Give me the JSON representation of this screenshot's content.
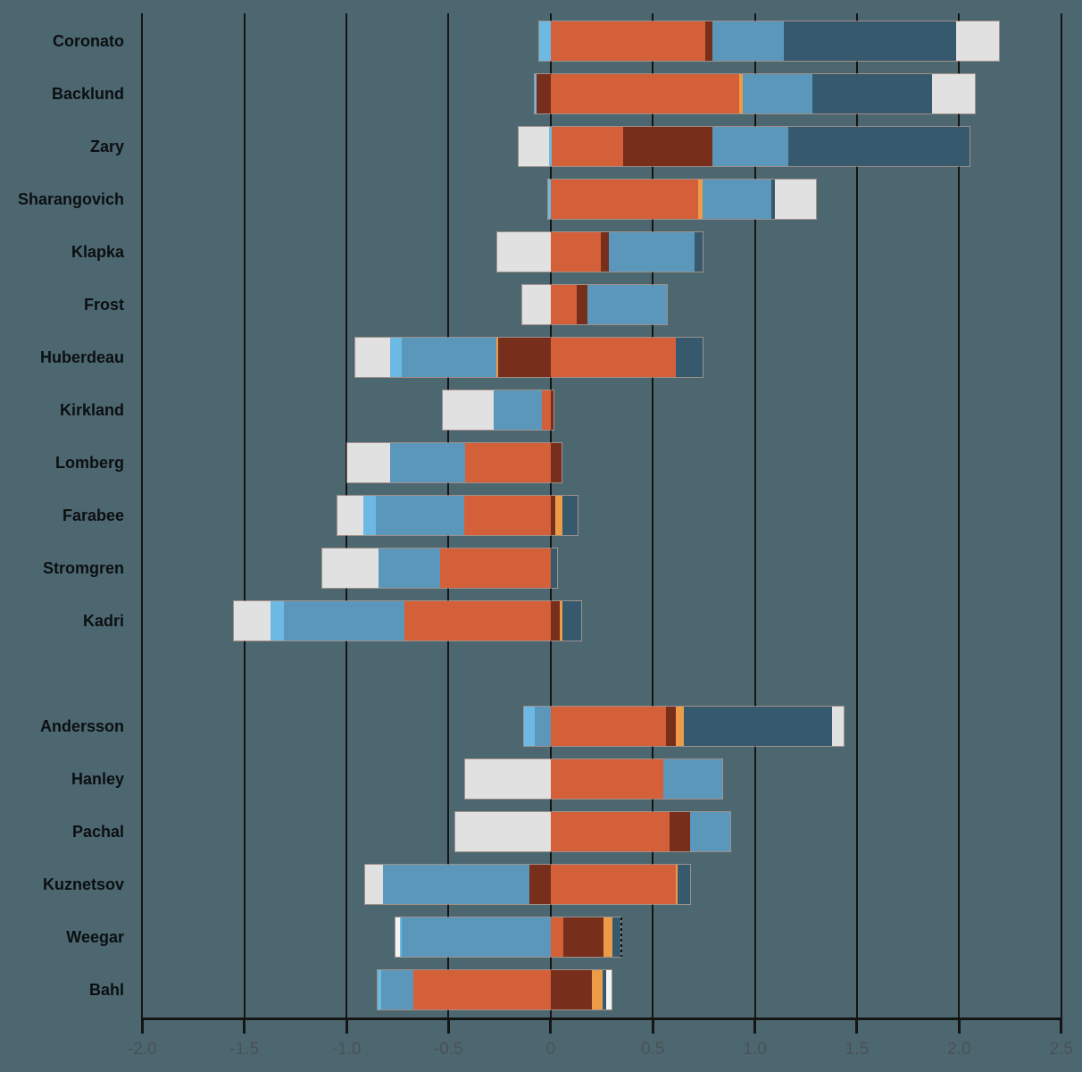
{
  "page": {
    "background_color": "#4D6770"
  },
  "chart_data": {
    "type": "bar",
    "variant": "horizontal-diverging-stacked",
    "title": "",
    "xlabel": "",
    "ylabel": "",
    "grid": "vertical-on",
    "legend": "none",
    "x_axis": {
      "min": -2.0,
      "max": 2.5,
      "tick_step": 0.5,
      "ticks": [
        -2.0,
        -1.5,
        -1.0,
        -0.5,
        0,
        0.5,
        1.0,
        1.5,
        2.0,
        2.5
      ],
      "tick_labels": [
        "-2.0",
        "-1.5",
        "-1.0",
        "-0.5",
        "0",
        "0.5",
        "1.0",
        "1.5",
        "2.0",
        "2.5"
      ]
    },
    "palette": {
      "light_blue": "#6CBAE4",
      "medium_blue": "#5B97BA",
      "dark_blue": "#37596E",
      "orange": "#D4603A",
      "dark_red": "#772F1C",
      "bright_orange": "#EC9C47",
      "light_gray": "#E2E1E1",
      "white": "#F4F4F4"
    },
    "groups": [
      {
        "rows": [
          {
            "label": "Coronato",
            "segments": [
              {
                "color": "light_blue",
                "from": -0.058,
                "to": 0
              },
              {
                "color": "orange",
                "from": 0,
                "to": 0.755
              },
              {
                "color": "dark_red",
                "from": 0.755,
                "to": 0.791
              },
              {
                "color": "medium_blue",
                "from": 0.791,
                "to": 1.14
              },
              {
                "color": "dark_blue",
                "from": 1.14,
                "to": 1.985
              },
              {
                "color": "light_gray",
                "from": 1.985,
                "to": 2.194
              }
            ]
          },
          {
            "label": "Backlund",
            "segments": [
              {
                "color": "light_blue",
                "from": -0.079,
                "to": -0.067
              },
              {
                "color": "dark_red",
                "from": -0.067,
                "to": 0
              },
              {
                "color": "orange",
                "from": 0,
                "to": 0.922
              },
              {
                "color": "bright_orange",
                "from": 0.922,
                "to": 0.942
              },
              {
                "color": "medium_blue",
                "from": 0.942,
                "to": 1.282
              },
              {
                "color": "dark_blue",
                "from": 1.282,
                "to": 1.868
              },
              {
                "color": "light_gray",
                "from": 1.868,
                "to": 2.077
              }
            ]
          },
          {
            "label": "Zary",
            "segments": [
              {
                "color": "light_gray",
                "from": -0.157,
                "to": -0.01
              },
              {
                "color": "light_blue",
                "from": -0.01,
                "to": 0.005
              },
              {
                "color": "orange",
                "from": 0.005,
                "to": 0.353
              },
              {
                "color": "dark_red",
                "from": 0.353,
                "to": 0.791
              },
              {
                "color": "medium_blue",
                "from": 0.791,
                "to": 1.165
              },
              {
                "color": "dark_blue",
                "from": 1.165,
                "to": 2.051
              }
            ]
          },
          {
            "label": "Sharangovich",
            "segments": [
              {
                "color": "light_blue",
                "from": -0.012,
                "to": 0
              },
              {
                "color": "orange",
                "from": 0,
                "to": 0.72
              },
              {
                "color": "bright_orange",
                "from": 0.72,
                "to": 0.742
              },
              {
                "color": "medium_blue",
                "from": 0.742,
                "to": 1.081
              },
              {
                "color": "dark_blue",
                "from": 1.081,
                "to": 1.099
              },
              {
                "color": "light_gray",
                "from": 1.099,
                "to": 1.3
              }
            ]
          },
          {
            "label": "Klapka",
            "segments": [
              {
                "color": "light_gray",
                "from": -0.26,
                "to": 0
              },
              {
                "color": "orange",
                "from": 0,
                "to": 0.247
              },
              {
                "color": "dark_red",
                "from": 0.247,
                "to": 0.284
              },
              {
                "color": "medium_blue",
                "from": 0.284,
                "to": 0.705
              },
              {
                "color": "dark_blue",
                "from": 0.705,
                "to": 0.744
              }
            ]
          },
          {
            "label": "Frost",
            "segments": [
              {
                "color": "light_gray",
                "from": -0.139,
                "to": 0
              },
              {
                "color": "orange",
                "from": 0,
                "to": 0.128
              },
              {
                "color": "dark_red",
                "from": 0.128,
                "to": 0.182
              },
              {
                "color": "medium_blue",
                "from": 0.182,
                "to": 0.571
              }
            ]
          },
          {
            "label": "Huberdeau",
            "segments": [
              {
                "color": "light_gray",
                "from": -0.958,
                "to": -0.785
              },
              {
                "color": "light_blue",
                "from": -0.785,
                "to": -0.73
              },
              {
                "color": "medium_blue",
                "from": -0.73,
                "to": -0.267
              },
              {
                "color": "bright_orange",
                "from": -0.267,
                "to": -0.259
              },
              {
                "color": "dark_red",
                "from": -0.259,
                "to": 0
              },
              {
                "color": "orange",
                "from": 0,
                "to": 0.611
              },
              {
                "color": "dark_blue",
                "from": 0.611,
                "to": 0.744
              }
            ]
          },
          {
            "label": "Kirkland",
            "segments": [
              {
                "color": "light_gray",
                "from": -0.529,
                "to": -0.281
              },
              {
                "color": "medium_blue",
                "from": -0.281,
                "to": -0.045
              },
              {
                "color": "orange",
                "from": -0.045,
                "to": 0
              },
              {
                "color": "dark_red",
                "from": 0,
                "to": 0.016
              }
            ]
          },
          {
            "label": "Lomberg",
            "segments": [
              {
                "color": "light_gray",
                "from": -0.997,
                "to": -0.788
              },
              {
                "color": "medium_blue",
                "from": -0.788,
                "to": -0.417
              },
              {
                "color": "orange",
                "from": -0.417,
                "to": 0
              },
              {
                "color": "dark_red",
                "from": 0,
                "to": 0.054
              }
            ]
          },
          {
            "label": "Farabee",
            "segments": [
              {
                "color": "light_gray",
                "from": -1.046,
                "to": -0.916
              },
              {
                "color": "light_blue",
                "from": -0.916,
                "to": -0.858
              },
              {
                "color": "medium_blue",
                "from": -0.858,
                "to": -0.424
              },
              {
                "color": "orange",
                "from": -0.424,
                "to": 0
              },
              {
                "color": "dark_red",
                "from": 0,
                "to": 0.022
              },
              {
                "color": "bright_orange",
                "from": 0.022,
                "to": 0.057
              },
              {
                "color": "dark_blue",
                "from": 0.057,
                "to": 0.13
              }
            ]
          },
          {
            "label": "Stromgren",
            "segments": [
              {
                "color": "light_gray",
                "from": -1.116,
                "to": -0.842
              },
              {
                "color": "medium_blue",
                "from": -0.842,
                "to": -0.541
              },
              {
                "color": "orange",
                "from": -0.541,
                "to": 0
              },
              {
                "color": "dark_blue",
                "from": 0,
                "to": 0.032
              }
            ]
          },
          {
            "label": "Kadri",
            "segments": [
              {
                "color": "light_gray",
                "from": -1.553,
                "to": -1.371
              },
              {
                "color": "light_blue",
                "from": -1.371,
                "to": -1.308
              },
              {
                "color": "medium_blue",
                "from": -1.308,
                "to": -0.718
              },
              {
                "color": "orange",
                "from": -0.718,
                "to": 0
              },
              {
                "color": "dark_red",
                "from": 0,
                "to": 0.046
              },
              {
                "color": "bright_orange",
                "from": 0.046,
                "to": 0.058
              },
              {
                "color": "dark_blue",
                "from": 0.058,
                "to": 0.149
              }
            ]
          }
        ]
      },
      {
        "rows": [
          {
            "label": "Andersson",
            "segments": [
              {
                "color": "light_blue",
                "from": -0.13,
                "to": -0.079
              },
              {
                "color": "medium_blue",
                "from": -0.079,
                "to": 0
              },
              {
                "color": "orange",
                "from": 0,
                "to": 0.564
              },
              {
                "color": "dark_red",
                "from": 0.564,
                "to": 0.611
              },
              {
                "color": "bright_orange",
                "from": 0.611,
                "to": 0.65
              },
              {
                "color": "dark_blue",
                "from": 0.65,
                "to": 1.376
              },
              {
                "color": "light_gray",
                "from": 1.376,
                "to": 1.434
              }
            ]
          },
          {
            "label": "Hanley",
            "segments": [
              {
                "color": "light_gray",
                "from": -0.42,
                "to": 0
              },
              {
                "color": "orange",
                "from": 0,
                "to": 0.553
              },
              {
                "color": "medium_blue",
                "from": 0.553,
                "to": 0.841
              }
            ]
          },
          {
            "label": "Pachal",
            "segments": [
              {
                "color": "light_gray",
                "from": -0.468,
                "to": 0
              },
              {
                "color": "orange",
                "from": 0,
                "to": 0.583
              },
              {
                "color": "dark_red",
                "from": 0.583,
                "to": 0.682
              },
              {
                "color": "medium_blue",
                "from": 0.682,
                "to": 0.881
              }
            ]
          },
          {
            "label": "Kuznetsov",
            "segments": [
              {
                "color": "light_gray",
                "from": -0.908,
                "to": -0.82
              },
              {
                "color": "medium_blue",
                "from": -0.82,
                "to": -0.103
              },
              {
                "color": "dark_red",
                "from": -0.103,
                "to": 0
              },
              {
                "color": "orange",
                "from": 0,
                "to": 0.613
              },
              {
                "color": "bright_orange",
                "from": 0.613,
                "to": 0.622
              },
              {
                "color": "dark_blue",
                "from": 0.622,
                "to": 0.683
              }
            ]
          },
          {
            "label": "Weegar",
            "segments": [
              {
                "color": "white",
                "from": -0.759,
                "to": -0.74
              },
              {
                "color": "light_blue",
                "from": -0.74,
                "to": -0.727
              },
              {
                "color": "medium_blue",
                "from": -0.727,
                "to": 0
              },
              {
                "color": "orange",
                "from": 0,
                "to": 0.061
              },
              {
                "color": "dark_red",
                "from": 0.061,
                "to": 0.258
              },
              {
                "color": "bright_orange",
                "from": 0.258,
                "to": 0.302
              },
              {
                "color": "dark_blue",
                "from": 0.302,
                "to": 0.341
              }
            ],
            "end_marker": {
              "x": 0.345,
              "style": "dotted"
            }
          },
          {
            "label": "Bahl",
            "segments": [
              {
                "color": "light_blue",
                "from": -0.849,
                "to": -0.829
              },
              {
                "color": "medium_blue",
                "from": -0.829,
                "to": -0.672
              },
              {
                "color": "orange",
                "from": -0.672,
                "to": 0
              },
              {
                "color": "dark_red",
                "from": 0,
                "to": 0.204
              },
              {
                "color": "bright_orange",
                "from": 0.204,
                "to": 0.255
              },
              {
                "color": "dark_blue",
                "from": 0.255,
                "to": 0.272
              },
              {
                "color": "white",
                "from": 0.272,
                "to": 0.297
              }
            ]
          }
        ]
      }
    ]
  }
}
